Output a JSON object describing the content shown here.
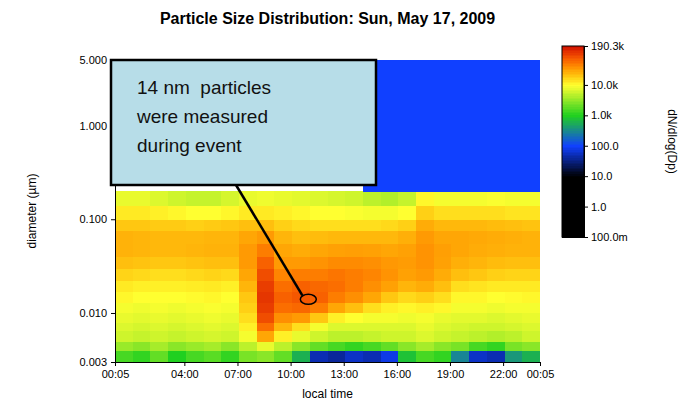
{
  "chart_data": {
    "type": "heatmap",
    "title": "Particle Size Distribution: Sun, May 17, 2009",
    "x_label": "local time",
    "y_label": "diameter (µm)",
    "log": "y",
    "xlim": [
      0.0833,
      24.0833
    ],
    "xticks": [
      {
        "value": 0.0833,
        "label": "00:05"
      },
      {
        "value": 4,
        "label": "04:00"
      },
      {
        "value": 7,
        "label": "07:00"
      },
      {
        "value": 10,
        "label": "10:00"
      },
      {
        "value": 13,
        "label": "13:00"
      },
      {
        "value": 16,
        "label": "16:00"
      },
      {
        "value": 19,
        "label": "19:00"
      },
      {
        "value": 22,
        "label": "22:00"
      },
      {
        "value": 24.0833,
        "label": "00:05"
      }
    ],
    "ylim": [
      0.003,
      5
    ],
    "yticks": [
      0.003,
      {
        "value": 0.01,
        "label": "0.010"
      },
      {
        "value": 0.1,
        "label": "0.100"
      },
      {
        "value": 1,
        "label": "1.000"
      },
      {
        "value": 5,
        "label": "5.000"
      }
    ],
    "x_edges": [
      0.0833,
      1.0833,
      2.0833,
      3.0833,
      4.0833,
      5.0833,
      6.0833,
      7.0833,
      8.0833,
      9.0833,
      10.0833,
      11.0833,
      12.0833,
      13.0833,
      14.0833,
      15.0833,
      16.0833,
      17.0833,
      18.0833,
      19.0833,
      20.0833,
      21.0833,
      22.0833,
      23.0833,
      24.0833
    ],
    "y_edges": [
      0.003,
      0.004,
      0.005,
      0.0065,
      0.008,
      0.01,
      0.013,
      0.017,
      0.022,
      0.03,
      0.04,
      0.055,
      0.075,
      0.1,
      0.14,
      0.2,
      5
    ],
    "z": [
      [
        1500,
        1200,
        2000,
        1000,
        1500,
        1800,
        1200,
        2500,
        3000,
        2000,
        600,
        50,
        40,
        60,
        50,
        80,
        800,
        1500,
        1200,
        300,
        60,
        50,
        400,
        600
      ],
      [
        3500,
        3000,
        4000,
        3000,
        3500,
        4000,
        3000,
        5000,
        8000,
        5000,
        3000,
        2000,
        1500,
        1200,
        1500,
        2000,
        3000,
        4000,
        3000,
        2500,
        1500,
        1200,
        2500,
        3000
      ],
      [
        6000,
        5500,
        6000,
        5500,
        6000,
        6500,
        6000,
        9000,
        30000,
        12000,
        8000,
        6000,
        5000,
        5000,
        5500,
        6000,
        6000,
        7000,
        6000,
        5500,
        5000,
        4500,
        5000,
        6000
      ],
      [
        7000,
        6500,
        7000,
        6500,
        7000,
        7500,
        7000,
        12000,
        60000,
        25000,
        15000,
        9000,
        7000,
        7000,
        7000,
        7000,
        7000,
        8000,
        7000,
        6500,
        6000,
        6000,
        6500,
        7000
      ],
      [
        8000,
        7500,
        8000,
        7500,
        8000,
        8500,
        8000,
        15000,
        90000,
        40000,
        35000,
        20000,
        12000,
        10000,
        9000,
        9000,
        8500,
        9000,
        8000,
        7500,
        7500,
        7000,
        7500,
        8000
      ],
      [
        9000,
        8500,
        9000,
        8500,
        9000,
        9500,
        9000,
        18000,
        110000,
        60000,
        65000,
        50000,
        30000,
        22000,
        15000,
        12000,
        11000,
        12000,
        11000,
        9000,
        9000,
        8500,
        9000,
        9000
      ],
      [
        11000,
        10000,
        10000,
        10000,
        10500,
        11000,
        10000,
        20000,
        120000,
        70000,
        80000,
        70000,
        50000,
        40000,
        30000,
        20000,
        16000,
        18000,
        15000,
        11000,
        11000,
        10000,
        10500,
        11000
      ],
      [
        13000,
        12000,
        12000,
        12000,
        12500,
        13000,
        12000,
        25000,
        110000,
        60000,
        70000,
        65000,
        60000,
        50000,
        40000,
        32000,
        25000,
        28000,
        22000,
        15000,
        14000,
        13000,
        13000,
        13000
      ],
      [
        17000,
        16000,
        15000,
        15000,
        16000,
        17000,
        16000,
        30000,
        90000,
        45000,
        50000,
        50000,
        55000,
        50000,
        45000,
        38000,
        32000,
        35000,
        28000,
        22000,
        20000,
        18000,
        17000,
        17000
      ],
      [
        22000,
        21000,
        20000,
        20000,
        21000,
        22000,
        22000,
        35000,
        70000,
        35000,
        35000,
        38000,
        42000,
        42000,
        40000,
        36000,
        34000,
        38000,
        32000,
        27000,
        25000,
        23000,
        22000,
        22000
      ],
      [
        26000,
        25000,
        24000,
        24000,
        25000,
        26000,
        26000,
        35000,
        50000,
        30000,
        28000,
        30000,
        32000,
        33000,
        32000,
        30000,
        32000,
        38000,
        33000,
        30000,
        28000,
        27000,
        26000,
        26000
      ],
      [
        26000,
        25000,
        24000,
        24000,
        24000,
        25000,
        25000,
        30000,
        35000,
        25000,
        22000,
        23000,
        24000,
        24000,
        24000,
        24000,
        27000,
        35000,
        30000,
        30000,
        29000,
        28000,
        27000,
        26000
      ],
      [
        20000,
        20000,
        19000,
        19000,
        18000,
        19000,
        20000,
        22000,
        22000,
        18000,
        16000,
        15000,
        15000,
        15000,
        15000,
        16000,
        18000,
        28000,
        24000,
        24000,
        24000,
        23000,
        22000,
        21000
      ],
      [
        13000,
        13000,
        12000,
        11000,
        10000,
        10000,
        11000,
        13000,
        13000,
        12000,
        11000,
        10000,
        10000,
        9500,
        9000,
        9000,
        10000,
        18000,
        15000,
        15000,
        15000,
        15000,
        14000,
        14000
      ],
      [
        8000,
        8000,
        7000,
        6000,
        5500,
        5500,
        6500,
        8000,
        8500,
        8000,
        7500,
        7000,
        6500,
        6000,
        5000,
        4500,
        5500,
        11000,
        9000,
        9000,
        9000,
        9500,
        9000,
        9000
      ],
      [
        null,
        null,
        null,
        null,
        null,
        null,
        null,
        null,
        null,
        null,
        null,
        null,
        null,
        null,
        100,
        100,
        100,
        100,
        100,
        100,
        100,
        100,
        100,
        100
      ]
    ],
    "colorbar": {
      "label": "dN/dlog(Dp)",
      "range": [
        0.1,
        190300
      ],
      "ticks": [
        {
          "value": 190300,
          "label": "190.3k"
        },
        {
          "value": 10000,
          "label": "10.0k"
        },
        {
          "value": 1000,
          "label": "1.0k"
        },
        {
          "value": 100,
          "label": "100.0"
        },
        {
          "value": 10,
          "label": "10.0"
        },
        {
          "value": 1,
          "label": "1.0"
        },
        {
          "value": 0.1,
          "label": "100.0m"
        }
      ]
    },
    "annotation": {
      "text": [
        "14 nm  particles",
        "were measured",
        "during event"
      ],
      "x": 11.0,
      "y": 0.014
    }
  }
}
